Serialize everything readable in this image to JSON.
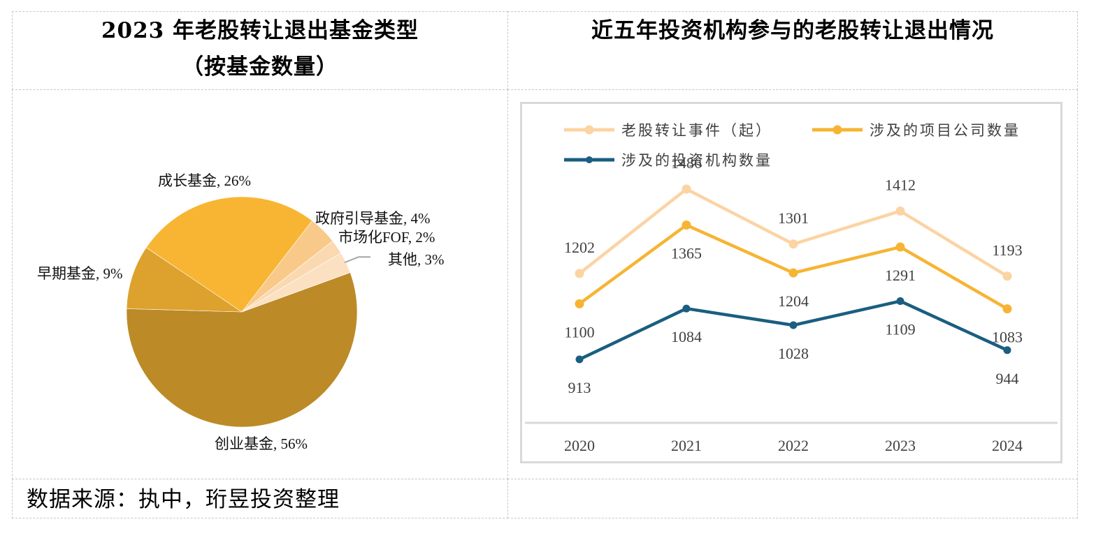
{
  "left_panel": {
    "title_line1": "2023 年老股转让退出基金类型",
    "title_line2": "（按基金数量）"
  },
  "right_panel": {
    "title": "近五年投资机构参与的老股转让退出情况"
  },
  "footer": {
    "source": "数据来源：执中，珩昱投资整理"
  },
  "chart_data": [
    {
      "type": "pie",
      "title": "2023 年老股转让退出基金类型（按基金数量）",
      "slices": [
        {
          "label": "创业基金",
          "value": 56,
          "display": "创业基金, 56%",
          "color": "#BC8A27"
        },
        {
          "label": "早期基金",
          "value": 9,
          "display": "早期基金, 9%",
          "color": "#DDA12E"
        },
        {
          "label": "成长基金",
          "value": 26,
          "display": "成长基金, 26%",
          "color": "#F8B534"
        },
        {
          "label": "政府引导基金",
          "value": 4,
          "display": "政府引导基金, 4%",
          "color": "#F9C98A"
        },
        {
          "label": "市场化FOF",
          "value": 2,
          "display": "市场化FOF, 2%",
          "color": "#FBD9B0"
        },
        {
          "label": "其他",
          "value": 3,
          "display": "其他, 3%",
          "color": "#FCE0C2"
        }
      ],
      "leader_line_color": "#A6A6A6"
    },
    {
      "type": "line",
      "title": "近五年投资机构参与的老股转让退出情况",
      "categories": [
        "2020",
        "2021",
        "2022",
        "2023",
        "2024"
      ],
      "series": [
        {
          "name": "老股转让事件（起）",
          "values": [
            1202,
            1486,
            1301,
            1412,
            1193
          ],
          "color": "#FCD3A3",
          "label_position": "above"
        },
        {
          "name": "涉及的项目公司数量",
          "values": [
            1100,
            1365,
            1204,
            1291,
            1083
          ],
          "color": "#F7B433",
          "label_position": "below"
        },
        {
          "name": "涉及的投资机构数量",
          "values": [
            913,
            1084,
            1028,
            1109,
            944
          ],
          "color": "#1A5E80",
          "label_position": "below"
        }
      ],
      "legend": "top",
      "grid": false,
      "ylim": [
        400,
        1600
      ],
      "xlabel": "",
      "ylabel": ""
    }
  ]
}
